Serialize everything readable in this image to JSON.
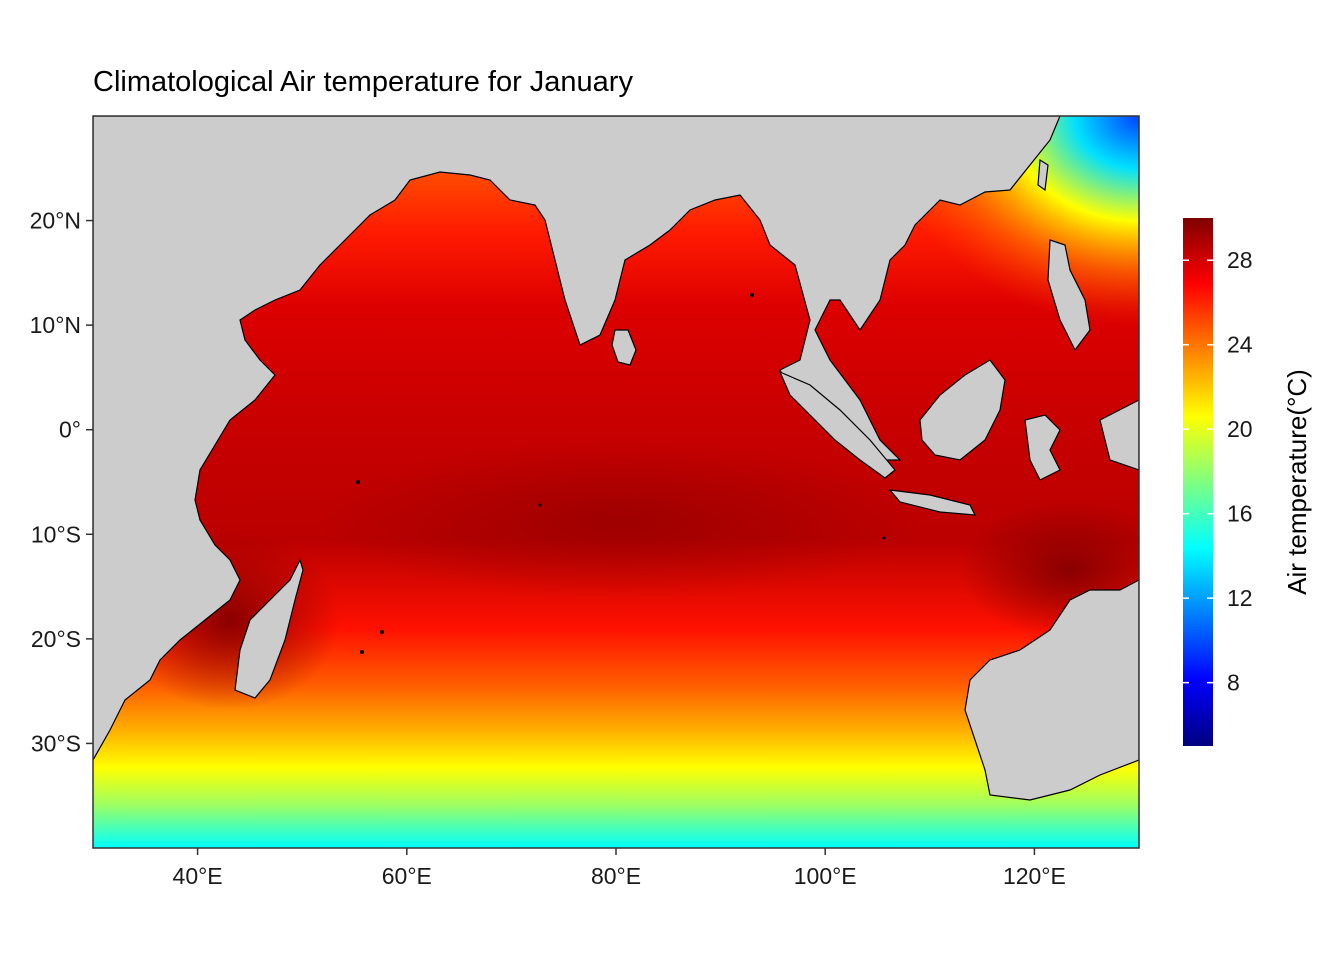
{
  "title": "Climatological Air temperature for January",
  "map": {
    "type": "filled-contour map",
    "lon_range": [
      30,
      130
    ],
    "lat_range": [
      -40,
      30
    ],
    "land_color": "#cccccc",
    "colormap": "jet",
    "x_ticks": [
      {
        "value": 40,
        "label": "40°E"
      },
      {
        "value": 60,
        "label": "60°E"
      },
      {
        "value": 80,
        "label": "80°E"
      },
      {
        "value": 100,
        "label": "100°E"
      },
      {
        "value": 120,
        "label": "120°E"
      }
    ],
    "y_ticks": [
      {
        "value": 20,
        "label": "20°N"
      },
      {
        "value": 10,
        "label": "10°N"
      },
      {
        "value": 0,
        "label": "0°"
      },
      {
        "value": -10,
        "label": "10°S"
      },
      {
        "value": -20,
        "label": "20°S"
      },
      {
        "value": -30,
        "label": "30°S"
      }
    ]
  },
  "legend": {
    "title": "Air temperature(°C)",
    "range": [
      5,
      30
    ],
    "ticks": [
      {
        "value": 8,
        "label": "8"
      },
      {
        "value": 12,
        "label": "12"
      },
      {
        "value": 16,
        "label": "16"
      },
      {
        "value": 20,
        "label": "20"
      },
      {
        "value": 24,
        "label": "24"
      },
      {
        "value": 28,
        "label": "28"
      }
    ],
    "colors": [
      "#000080",
      "#0000ff",
      "#0080ff",
      "#00ffff",
      "#80ff80",
      "#ffff00",
      "#ff8000",
      "#ff0000",
      "#800000"
    ]
  }
}
